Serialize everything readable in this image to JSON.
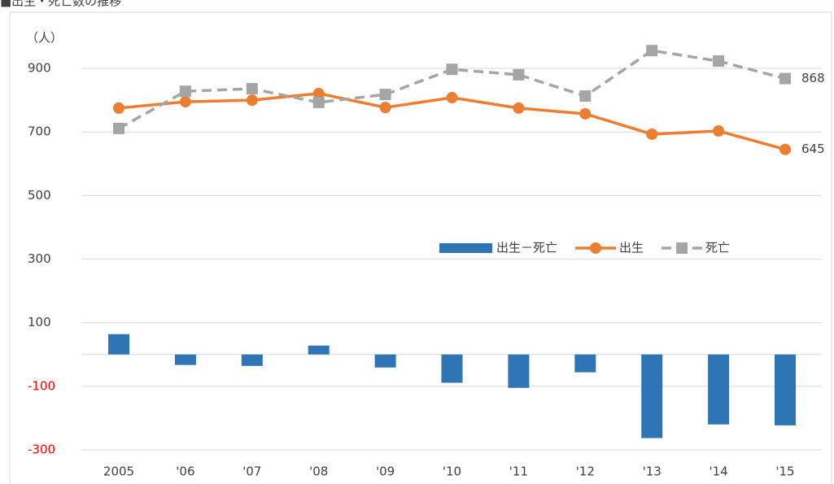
{
  "chart_data": {
    "type": "combo",
    "title": "■出生・死亡数の推移",
    "y_unit_label": "（人）",
    "categories": [
      "2005",
      "'06",
      "'07",
      "'08",
      "'09",
      "'10",
      "'11",
      "'12",
      "'13",
      "'14",
      "'15"
    ],
    "series": [
      {
        "name": "出生－死亡",
        "kind": "bar",
        "color": "#2e75b6",
        "values": [
          64,
          -33,
          -36,
          28,
          -41,
          -89,
          -105,
          -56,
          -263,
          -220,
          -223
        ]
      },
      {
        "name": "出生",
        "kind": "line",
        "marker": "circle",
        "dashed": false,
        "color": "#ed7d31",
        "values": [
          775,
          795,
          800,
          821,
          777,
          808,
          775,
          757,
          693,
          703,
          645
        ],
        "end_label": true
      },
      {
        "name": "死亡",
        "kind": "line",
        "marker": "square",
        "dashed": true,
        "color": "#a5a5a5",
        "values": [
          711,
          828,
          836,
          793,
          818,
          897,
          880,
          813,
          956,
          923,
          868
        ],
        "end_label": true
      }
    ],
    "ylim": [
      -300,
      1000
    ],
    "yticks": [
      -300,
      -100,
      100,
      300,
      500,
      700,
      900
    ],
    "grid": true,
    "negative_tick_color": "#ff0000",
    "legend": "right"
  }
}
